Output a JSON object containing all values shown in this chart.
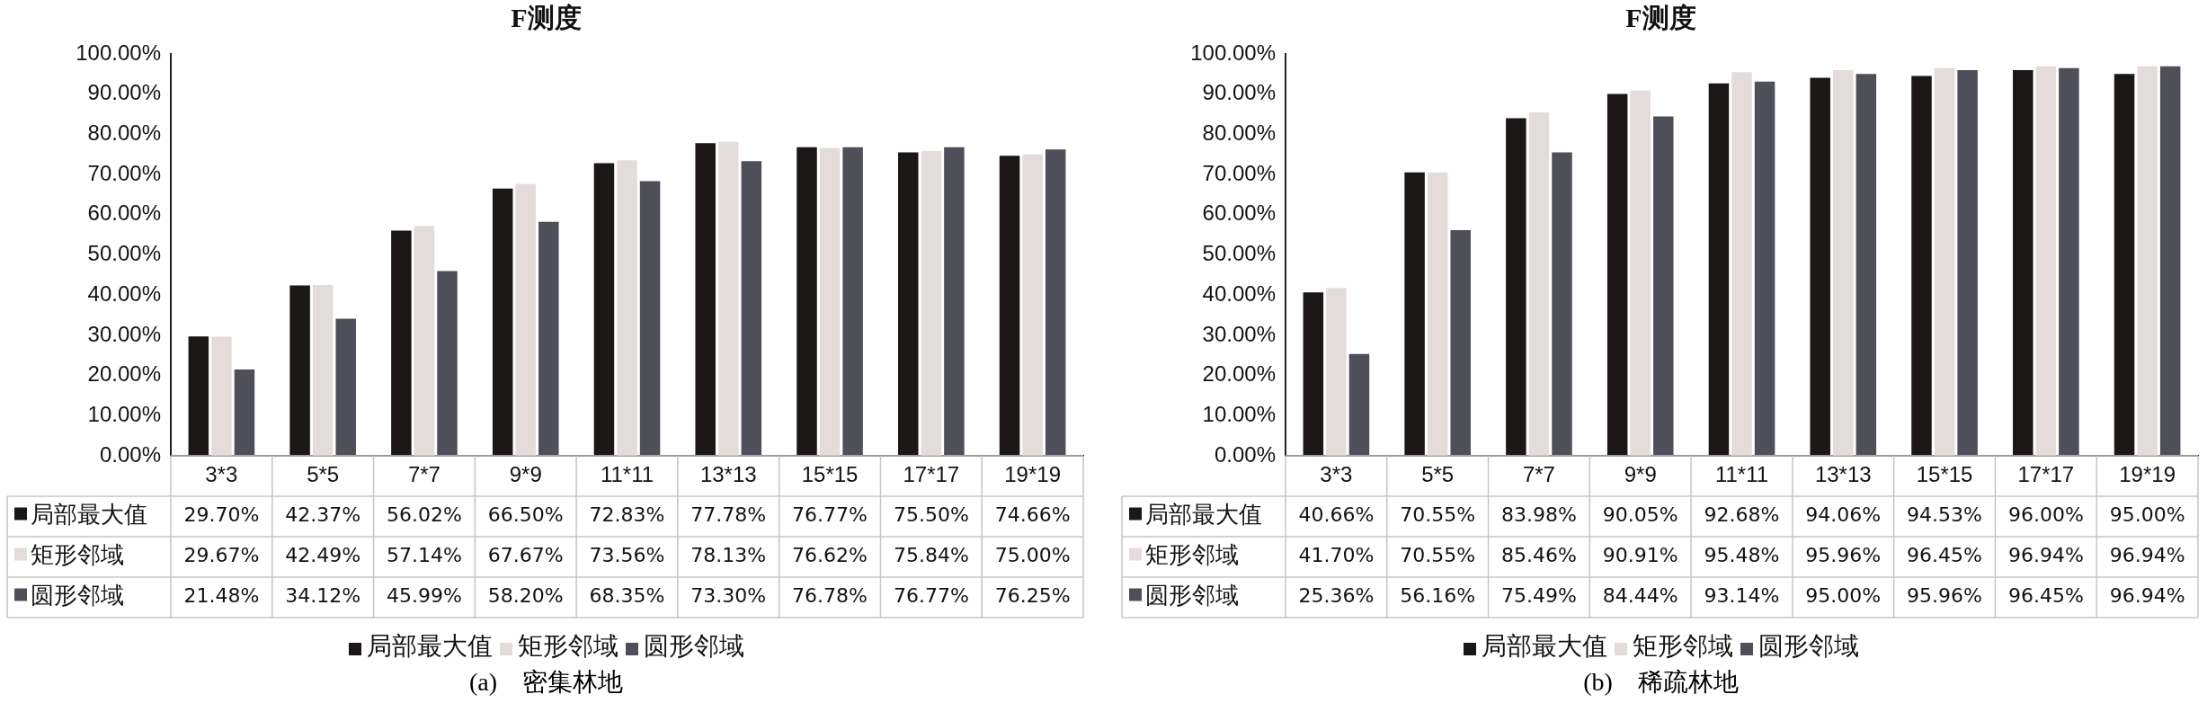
{
  "chart_data": [
    {
      "type": "bar",
      "title": "F测度",
      "annotations": [
        "(a)　密集林地"
      ],
      "categories": [
        "3*3",
        "5*5",
        "7*7",
        "9*9",
        "11*11",
        "13*13",
        "15*15",
        "17*17",
        "19*19"
      ],
      "ylim": [
        0,
        100
      ],
      "yticks": [
        {
          "value": 0,
          "label": "0.00%"
        },
        {
          "value": 10,
          "label": "10.00%"
        },
        {
          "value": 20,
          "label": "20.00%"
        },
        {
          "value": 30,
          "label": "30.00%"
        },
        {
          "value": 40,
          "label": "40.00%"
        },
        {
          "value": 50,
          "label": "50.00%"
        },
        {
          "value": 60,
          "label": "60.00%"
        },
        {
          "value": 70,
          "label": "70.00%"
        },
        {
          "value": 80,
          "label": "80.00%"
        },
        {
          "value": 90,
          "label": "90.00%"
        },
        {
          "value": 100,
          "label": "100.00%"
        }
      ],
      "legend": "bottom",
      "grid": false,
      "series": [
        {
          "name": "局部最大值",
          "color": "#1a1716",
          "values": [
            29.7,
            42.37,
            56.02,
            66.5,
            72.83,
            77.78,
            76.77,
            75.5,
            74.66
          ],
          "value_labels": [
            "29.70%",
            "42.37%",
            "56.02%",
            "66.50%",
            "72.83%",
            "77.78%",
            "76.77%",
            "75.50%",
            "74.66%"
          ]
        },
        {
          "name": "矩形邻域",
          "color": "#e3dcdb",
          "values": [
            29.67,
            42.49,
            57.14,
            67.67,
            73.56,
            78.13,
            76.62,
            75.84,
            75.0
          ],
          "value_labels": [
            "29.67%",
            "42.49%",
            "57.14%",
            "67.67%",
            "73.56%",
            "78.13%",
            "76.62%",
            "75.84%",
            "75.00%"
          ]
        },
        {
          "name": "圆形邻域",
          "color": "#4f4f5a",
          "values": [
            21.48,
            34.12,
            45.99,
            58.2,
            68.35,
            73.3,
            76.78,
            76.77,
            76.25
          ],
          "value_labels": [
            "21.48%",
            "34.12%",
            "45.99%",
            "58.20%",
            "68.35%",
            "73.30%",
            "76.78%",
            "76.77%",
            "76.25%"
          ]
        }
      ]
    },
    {
      "type": "bar",
      "title": "F测度",
      "annotations": [
        "(b)　稀疏林地"
      ],
      "categories": [
        "3*3",
        "5*5",
        "7*7",
        "9*9",
        "11*11",
        "13*13",
        "15*15",
        "17*17",
        "19*19"
      ],
      "ylim": [
        0,
        100
      ],
      "yticks": [
        {
          "value": 0,
          "label": "0.00%"
        },
        {
          "value": 10,
          "label": "10.00%"
        },
        {
          "value": 20,
          "label": "20.00%"
        },
        {
          "value": 30,
          "label": "30.00%"
        },
        {
          "value": 40,
          "label": "40.00%"
        },
        {
          "value": 50,
          "label": "50.00%"
        },
        {
          "value": 60,
          "label": "60.00%"
        },
        {
          "value": 70,
          "label": "70.00%"
        },
        {
          "value": 80,
          "label": "80.00%"
        },
        {
          "value": 90,
          "label": "90.00%"
        },
        {
          "value": 100,
          "label": "100.00%"
        }
      ],
      "legend": "bottom",
      "grid": false,
      "series": [
        {
          "name": "局部最大值",
          "color": "#1a1716",
          "values": [
            40.66,
            70.55,
            83.98,
            90.05,
            92.68,
            94.06,
            94.53,
            96.0,
            95.0
          ],
          "value_labels": [
            "40.66%",
            "70.55%",
            "83.98%",
            "90.05%",
            "92.68%",
            "94.06%",
            "94.53%",
            "96.00%",
            "95.00%"
          ]
        },
        {
          "name": "矩形邻域",
          "color": "#e3dcdb",
          "values": [
            41.7,
            70.55,
            85.46,
            90.91,
            95.48,
            95.96,
            96.45,
            96.94,
            96.94
          ],
          "value_labels": [
            "41.70%",
            "70.55%",
            "85.46%",
            "90.91%",
            "95.48%",
            "95.96%",
            "96.45%",
            "96.94%",
            "96.94%"
          ]
        },
        {
          "name": "圆形邻域",
          "color": "#4f4f5a",
          "values": [
            25.36,
            56.16,
            75.49,
            84.44,
            93.14,
            95.0,
            95.96,
            96.45,
            96.94
          ],
          "value_labels": [
            "25.36%",
            "56.16%",
            "75.49%",
            "84.44%",
            "93.14%",
            "95.00%",
            "95.96%",
            "96.45%",
            "96.94%"
          ]
        }
      ]
    }
  ]
}
